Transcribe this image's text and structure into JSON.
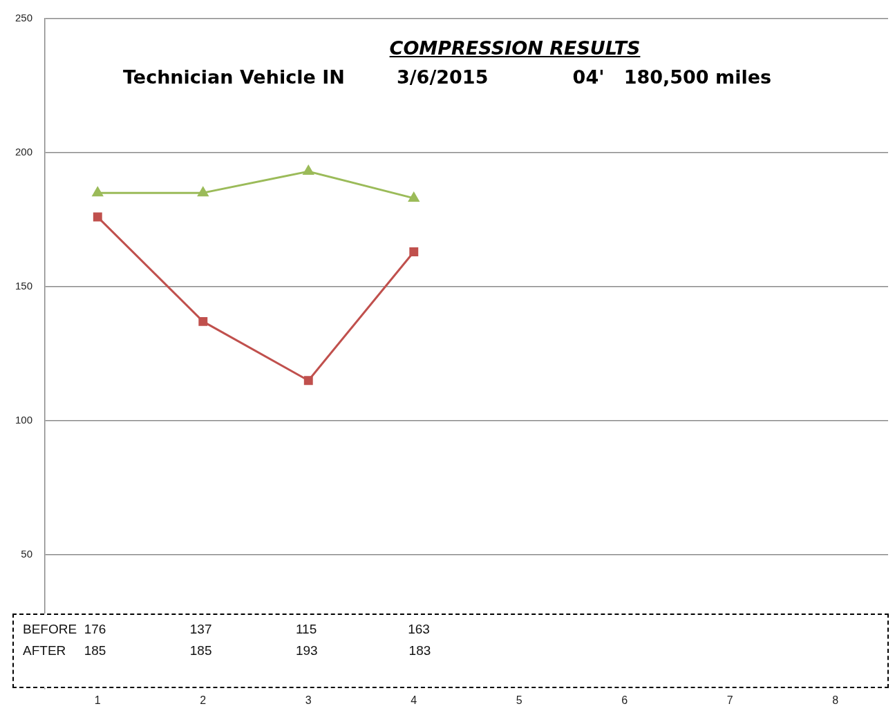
{
  "chart_data": {
    "type": "line",
    "title": "COMPRESSION RESULTS",
    "subtitle": "Technician Vehicle IN        3/6/2015             04'   180,500 miles",
    "categories": [
      "1",
      "2",
      "3",
      "4",
      "5",
      "6",
      "7",
      "8"
    ],
    "series": [
      {
        "color": "#c0504d",
        "marker": "square",
        "values": [
          176,
          137,
          115,
          163,
          null,
          null,
          null,
          null
        ]
      },
      {
        "color": "#9bbb59",
        "marker": "triangle",
        "values": [
          185,
          185,
          193,
          183,
          null,
          null,
          null,
          null
        ]
      }
    ],
    "annotations": [
      "BEFORE  176                       137                       115                         163",
      "AFTER     185                       185                       193                         183"
    ],
    "ylim": [
      0,
      250
    ],
    "yticks": [
      50,
      100,
      150,
      200,
      250
    ],
    "grid": "y",
    "legend": false,
    "line_style": "solid"
  }
}
